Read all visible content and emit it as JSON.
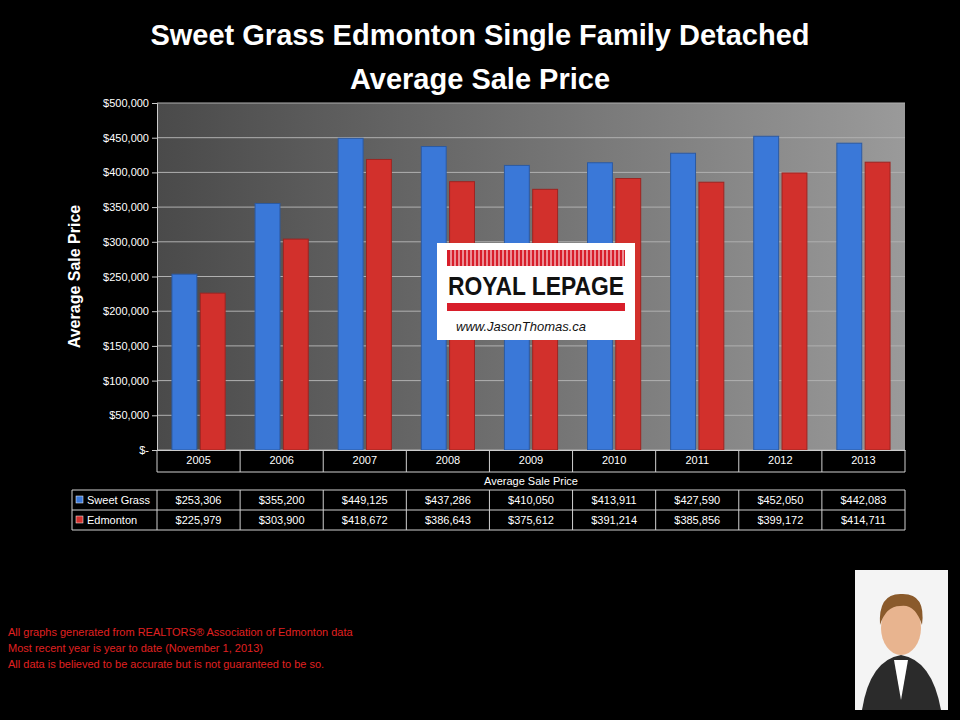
{
  "chart_data": {
    "type": "bar",
    "title": "Sweet Grass Edmonton Single Family Detached",
    "subtitle": "Average Sale Price",
    "y_label": "Average Sale Price",
    "x_label": "Average Sale Price",
    "categories": [
      "2005",
      "2006",
      "2007",
      "2008",
      "2009",
      "2010",
      "2011",
      "2012",
      "2013"
    ],
    "series": [
      {
        "name": "Sweet Grass",
        "color": "#3a78d8",
        "values": [
          253306,
          355200,
          449125,
          437286,
          410050,
          413911,
          427590,
          452050,
          442083
        ],
        "value_labels": [
          "$253,306",
          "$355,200",
          "$449,125",
          "$437,286",
          "$410,050",
          "$413,911",
          "$427,590",
          "$452,050",
          "$442,083"
        ]
      },
      {
        "name": "Edmonton",
        "color": "#d2302c",
        "values": [
          225979,
          303900,
          418672,
          386643,
          375612,
          391214,
          385856,
          399172,
          414711
        ],
        "value_labels": [
          "$225,979",
          "$303,900",
          "$418,672",
          "$386,643",
          "$375,612",
          "$391,214",
          "$385,856",
          "$399,172",
          "$414,711"
        ]
      }
    ],
    "ylim": [
      0,
      500000
    ],
    "yticks": [
      {
        "value": 0,
        "label": "$-"
      },
      {
        "value": 50000,
        "label": "$50,000"
      },
      {
        "value": 100000,
        "label": "$100,000"
      },
      {
        "value": 150000,
        "label": "$150,000"
      },
      {
        "value": 200000,
        "label": "$200,000"
      },
      {
        "value": 250000,
        "label": "$250,000"
      },
      {
        "value": 300000,
        "label": "$300,000"
      },
      {
        "value": 350000,
        "label": "$350,000"
      },
      {
        "value": 400000,
        "label": "$400,000"
      },
      {
        "value": 450000,
        "label": "$450,000"
      },
      {
        "value": 500000,
        "label": "$500,000"
      }
    ],
    "grid": true,
    "annotations": {
      "logo": "ROYAL LEPAGE",
      "website": "www.JasonThomas.ca",
      "footnotes": [
        "All graphs generated from REALTORS® Association of Edmonton data",
        "Most recent year is year to date (November 1, 2013)",
        "All data is believed to be accurate but is not guaranteed to be so."
      ]
    }
  }
}
